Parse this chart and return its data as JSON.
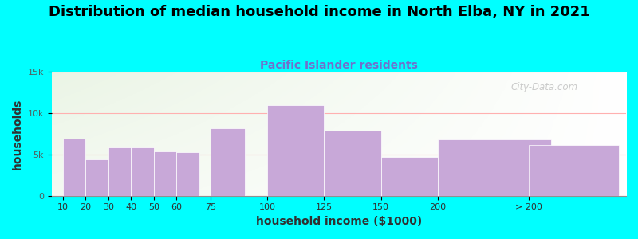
{
  "title": "Distribution of median household income in North Elba, NY in 2021",
  "subtitle": "Pacific Islander residents",
  "xlabel": "household income ($1000)",
  "ylabel": "households",
  "background_color": "#00FFFF",
  "bar_color": "#C8A8D8",
  "values": [
    6900,
    4400,
    5900,
    5900,
    5400,
    5300,
    8200,
    11000,
    7900,
    4700,
    6800,
    6100
  ],
  "positions": [
    10,
    20,
    30,
    40,
    50,
    60,
    75,
    100,
    125,
    150,
    175,
    215
  ],
  "widths": [
    10,
    10,
    10,
    10,
    10,
    10,
    15,
    25,
    25,
    25,
    50,
    40
  ],
  "xlim": [
    5,
    258
  ],
  "ylim": [
    0,
    15000
  ],
  "yticks": [
    0,
    5000,
    10000,
    15000
  ],
  "ytick_labels": [
    "0",
    "5k",
    "10k",
    "15k"
  ],
  "xtick_positions": [
    10,
    20,
    30,
    40,
    50,
    60,
    75,
    100,
    125,
    150,
    175,
    215
  ],
  "xtick_labels": [
    "10",
    "20",
    "30",
    "40",
    "50",
    "60",
    "75",
    "100",
    "125",
    "150",
    "200",
    "> 200"
  ],
  "watermark": "City-Data.com",
  "title_fontsize": 13,
  "subtitle_fontsize": 10,
  "subtitle_color": "#7070CC",
  "axis_label_fontsize": 10,
  "tick_fontsize": 8,
  "title_color": "#000000"
}
